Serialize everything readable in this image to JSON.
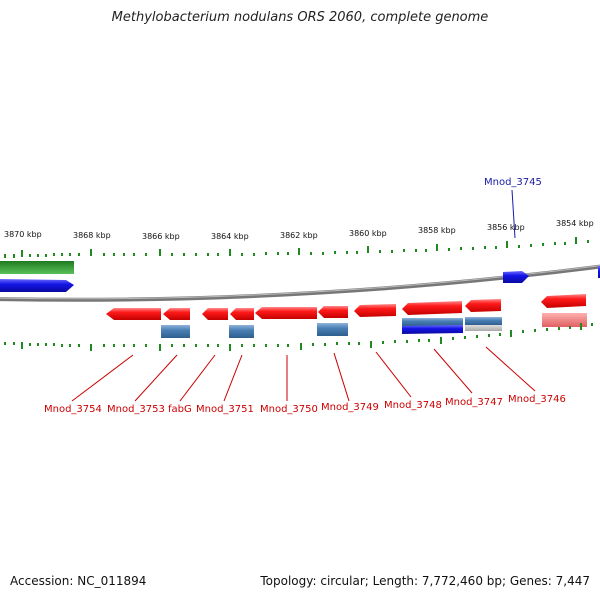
{
  "header": {
    "title": "Methylobacterium nodulans ORS 2060, complete genome"
  },
  "footer": {
    "accession": "Accession: NC_011894",
    "summary": "Topology: circular; Length: 7,772,460 bp; Genes: 7,447"
  },
  "scale": {
    "unit": "kbp",
    "labels": [
      "3870 kbp",
      "3868 kbp",
      "3866 kbp",
      "3864 kbp",
      "3862 kbp",
      "3860 kbp",
      "3858 kbp",
      "3856 kbp",
      "3854 kbp"
    ]
  },
  "colors": {
    "forward_cds": "#ff1a1a",
    "blue_gene": "#1414e6",
    "steel_gene": "#4a7fb5",
    "green_gene": "#229922",
    "backbone": "#777777",
    "tick": "#1f8a1f",
    "label_red": "#cc0000",
    "label_blue": "#1a1aa6"
  },
  "gene_labels": {
    "top": [
      {
        "text": "Mnod_3745",
        "color": "blue"
      }
    ],
    "bottom": [
      {
        "text": "Mnod_3754",
        "color": "red"
      },
      {
        "text": "Mnod_3753",
        "color": "red"
      },
      {
        "text": "fabG",
        "color": "red"
      },
      {
        "text": "Mnod_3751",
        "color": "red"
      },
      {
        "text": "Mnod_3750",
        "color": "red"
      },
      {
        "text": "Mnod_3749",
        "color": "red"
      },
      {
        "text": "Mnod_3748",
        "color": "red"
      },
      {
        "text": "Mnod_3747",
        "color": "red"
      },
      {
        "text": "Mnod_3746",
        "color": "red"
      }
    ]
  }
}
